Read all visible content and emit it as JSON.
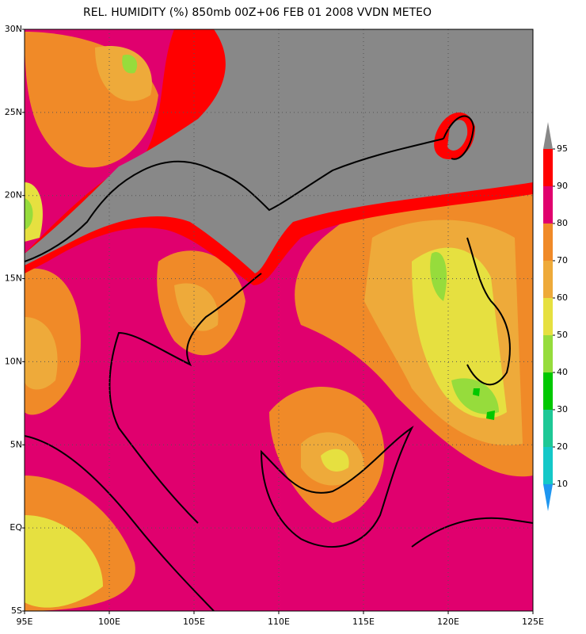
{
  "title": "REL. HUMIDITY (%) 850mb 00Z+06 FEB 01 2008 VVDN METEO",
  "lat_labels": [
    "30N",
    "25N",
    "20N",
    "15N",
    "10N",
    "5N",
    "EQ",
    "5S"
  ],
  "lon_labels": [
    "95E",
    "100E",
    "105E",
    "110E",
    "115E",
    "120E",
    "125E"
  ],
  "legend": {
    "over_color": "#888888",
    "levels": [
      {
        "value": 95,
        "color": "#ff0000"
      },
      {
        "value": 90,
        "color": "#e0006e"
      },
      {
        "value": 80,
        "color": "#f08a28"
      },
      {
        "value": 70,
        "color": "#eeaa3a"
      },
      {
        "value": 60,
        "color": "#e6e040"
      },
      {
        "value": 50,
        "color": "#96dc3c"
      },
      {
        "value": 40,
        "color": "#00c800"
      },
      {
        "value": 30,
        "color": "#1ec896"
      },
      {
        "value": 20,
        "color": "#14c8c8"
      },
      {
        "value": 10,
        "color": "#1e96f0"
      }
    ]
  }
}
